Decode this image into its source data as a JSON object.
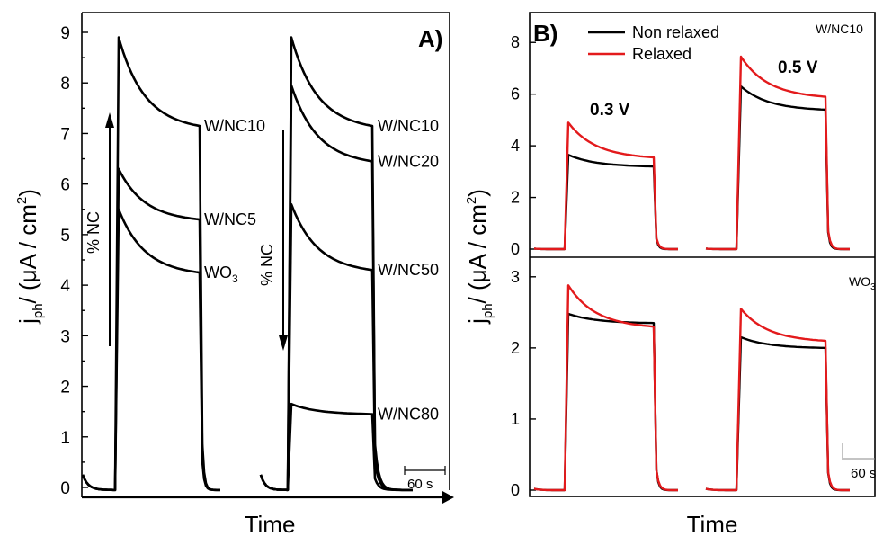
{
  "chart_data": [
    {
      "panel": "A)",
      "type": "line",
      "xlabel": "Time",
      "ylabel_main": "j",
      "ylabel_sub": "ph",
      "ylabel_rest": "/ (μA / cm",
      "ylabel_sup": "2",
      "ylabel_close": ")",
      "ylim": [
        0,
        9
      ],
      "yticks": [
        "0",
        "1",
        "2",
        "3",
        "4",
        "5",
        "6",
        "7",
        "8",
        "9"
      ],
      "x_unit": "s",
      "scale_bar": "60 s",
      "trend_label": "% NC",
      "series": [
        {
          "name": "WO",
          "name_sub": "3",
          "group": 1,
          "peak": 5.5,
          "end": 4.25
        },
        {
          "name": "W/NC5",
          "group": 1,
          "peak": 6.3,
          "end": 5.3
        },
        {
          "name": "W/NC10",
          "group": 1,
          "peak": 8.9,
          "end": 7.15
        },
        {
          "name": "W/NC10",
          "group": 2,
          "peak": 8.9,
          "end": 7.15
        },
        {
          "name": "W/NC20",
          "group": 2,
          "peak": 7.95,
          "end": 6.45
        },
        {
          "name": "W/NC50",
          "group": 2,
          "peak": 5.6,
          "end": 4.3
        },
        {
          "name": "W/NC80",
          "group": 2,
          "peak": 1.65,
          "end": 1.45
        }
      ]
    },
    {
      "panel": "B)",
      "type": "line",
      "xlabel": "Time",
      "ylabel_main": "j",
      "ylabel_sub": "ph",
      "ylabel_rest": "/ (μA / cm",
      "ylabel_sup": "2",
      "ylabel_close": ")",
      "scale_bar": "60 s",
      "legend": [
        "Non relaxed",
        "Relaxed"
      ],
      "colors": {
        "non_relaxed": "#000000",
        "relaxed": "#e31a1c"
      },
      "subplots": [
        {
          "title": "W/NC10",
          "ylim": [
            0,
            8.6
          ],
          "yticks": [
            "0",
            "2",
            "4",
            "6",
            "8"
          ],
          "pulses": [
            {
              "label": "0.3 V",
              "non_relaxed": {
                "peak": 3.65,
                "end": 3.2
              },
              "relaxed": {
                "peak": 4.9,
                "end": 3.55
              }
            },
            {
              "label": "0.5 V",
              "non_relaxed": {
                "peak": 6.3,
                "end": 5.4
              },
              "relaxed": {
                "peak": 7.45,
                "end": 5.9
              }
            }
          ]
        },
        {
          "title": "WO",
          "title_sub": "3",
          "ylim": [
            0,
            3.2
          ],
          "yticks": [
            "0",
            "1",
            "2",
            "3"
          ],
          "pulses": [
            {
              "non_relaxed": {
                "peak": 2.48,
                "end": 2.35
              },
              "relaxed": {
                "peak": 2.88,
                "end": 2.3
              }
            },
            {
              "non_relaxed": {
                "peak": 2.15,
                "end": 2.0
              },
              "relaxed": {
                "peak": 2.55,
                "end": 2.1
              }
            }
          ]
        }
      ]
    }
  ]
}
